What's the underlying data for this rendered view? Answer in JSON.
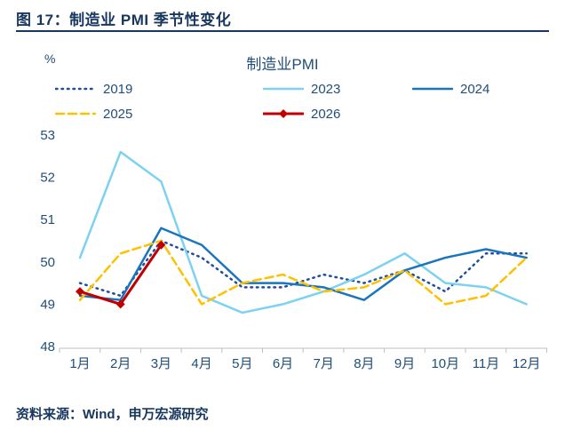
{
  "header": {
    "title": "图 17：制造业 PMI 季节性变化"
  },
  "footer": {
    "source": "资料来源：Wind，申万宏源研究"
  },
  "colors": {
    "header_text": "#17375e",
    "axis_text": "#1f4e79",
    "axis_line": "#bfbfbf"
  },
  "chart_data": {
    "type": "line",
    "title": "制造业PMI",
    "unit_label": "%",
    "xlabel": "",
    "ylabel": "%",
    "ylim": [
      48,
      53
    ],
    "ytick_step": 1,
    "grid": false,
    "legend_position": "top",
    "categories": [
      "1月",
      "2月",
      "3月",
      "4月",
      "5月",
      "6月",
      "7月",
      "8月",
      "9月",
      "10月",
      "11月",
      "12月"
    ],
    "series": [
      {
        "name": "2019",
        "color": "#1f4e9c",
        "style": "dotted",
        "marker": "none",
        "values": [
          49.5,
          49.2,
          50.5,
          50.1,
          49.4,
          49.4,
          49.7,
          49.5,
          49.8,
          49.3,
          50.2,
          50.2
        ]
      },
      {
        "name": "2023",
        "color": "#7cd2f0",
        "style": "solid",
        "marker": "none",
        "values": [
          50.1,
          52.6,
          51.9,
          49.2,
          48.8,
          49.0,
          49.3,
          49.7,
          50.2,
          49.5,
          49.4,
          49.0
        ]
      },
      {
        "name": "2024",
        "color": "#1b75bc",
        "style": "solid",
        "marker": "none",
        "values": [
          49.2,
          49.1,
          50.8,
          50.4,
          49.5,
          49.5,
          49.4,
          49.1,
          49.8,
          50.1,
          50.3,
          50.1
        ]
      },
      {
        "name": "2025",
        "color": "#ffc000",
        "style": "dashed",
        "marker": "none",
        "values": [
          49.1,
          50.2,
          50.5,
          49.0,
          49.5,
          49.7,
          49.3,
          49.4,
          49.8,
          49.0,
          49.2,
          50.1
        ]
      },
      {
        "name": "2026",
        "color": "#c00000",
        "style": "solid",
        "marker": "diamond",
        "values": [
          49.3,
          49.0,
          50.4
        ]
      }
    ]
  }
}
